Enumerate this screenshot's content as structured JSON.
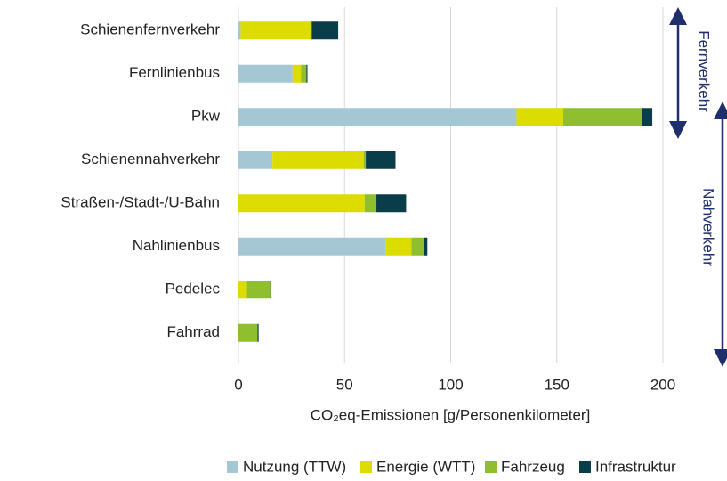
{
  "chart_data": {
    "type": "stacked-bar-horizontal",
    "categories": [
      "Schienenfernverkehr",
      "Fernlinienbus",
      "Pkw",
      "Schienennahverkehr",
      "Straßen-/Stadt-/U-Bahn",
      "Nahlinienbus",
      "Pedelec",
      "Fahrrad"
    ],
    "series": [
      {
        "name": "Nutzung (TTW)",
        "color": "#a5c6d3",
        "values": [
          1,
          25.5,
          131,
          16,
          0,
          69.5,
          0,
          0
        ]
      },
      {
        "name": "Energie (WTT)",
        "color": "#dcdc00",
        "values": [
          33,
          4,
          22,
          43,
          59.5,
          12,
          4,
          0
        ]
      },
      {
        "name": "Fahrzeug",
        "color": "#8fbe2e",
        "values": [
          0.5,
          2.5,
          37,
          1,
          5.5,
          6,
          11,
          9
        ]
      },
      {
        "name": "Infrastruktur",
        "color": "#0a3d4a",
        "values": [
          12.5,
          0.5,
          5,
          14,
          14,
          1.5,
          0.5,
          0.5
        ]
      }
    ],
    "xlabel": "CO₂eq-Emissionen [g/Personenkilometer]",
    "xlim": [
      0,
      200
    ],
    "xticks": [
      0,
      50,
      100,
      150,
      200
    ],
    "grid": true,
    "legend": "bottom",
    "annotations": [
      "Fernverkehr",
      "Nahverkehr"
    ]
  }
}
